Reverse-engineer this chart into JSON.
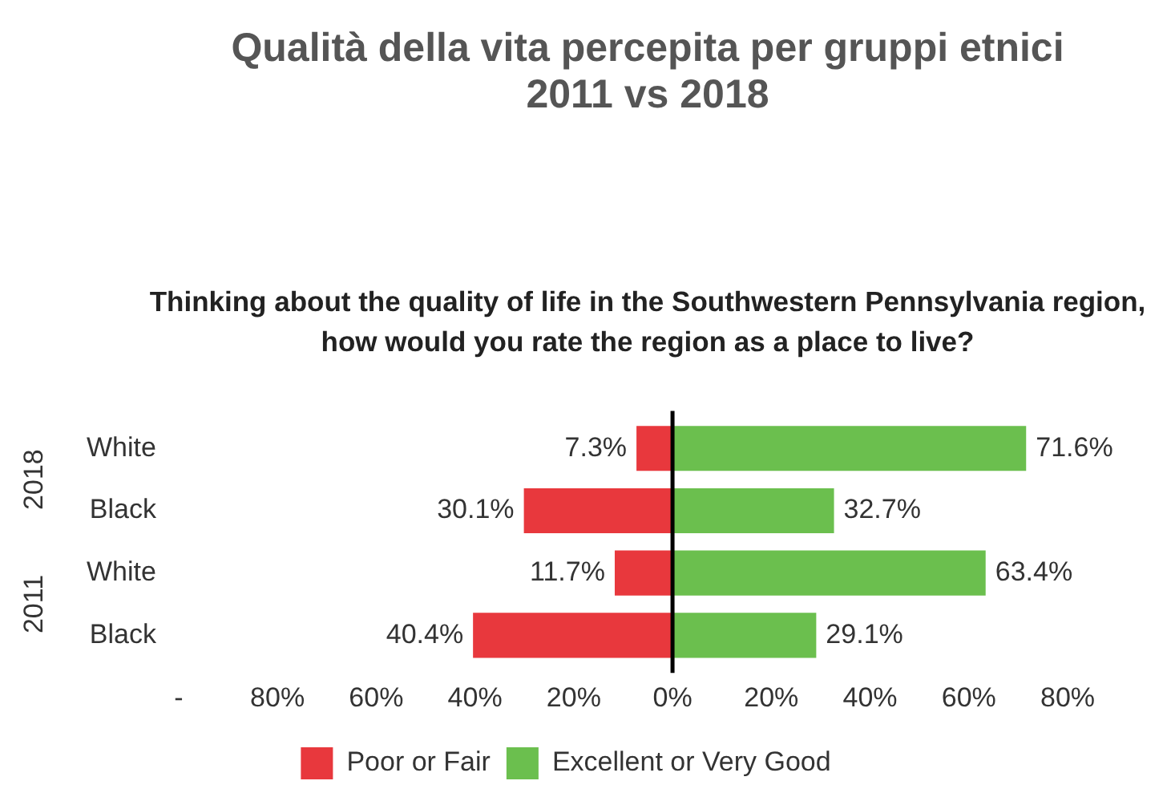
{
  "chart_data": {
    "type": "bar",
    "orientation": "horizontal",
    "title": "Qualità della vita percepita per gruppi etnici\n2011 vs 2018",
    "subtitle": "Thinking about the quality of life in the Southwestern Pennsylvania region,\nhow would you rate the region as a place to live?",
    "categories": [
      "White",
      "Black",
      "White",
      "Black"
    ],
    "series": [
      {
        "name": "Poor or Fair",
        "color": "#e8383d",
        "base": [
          -7.3,
          -30.1,
          -11.7,
          -40.4
        ],
        "values": [
          7.3,
          30.1,
          11.7,
          40.4
        ],
        "value_labels": [
          "7.3%",
          "30.1%",
          "11.7%",
          "40.4%"
        ]
      },
      {
        "name": "Excellent or Very Good",
        "color": "#6bbf4e",
        "values": [
          71.6,
          32.7,
          63.4,
          29.1
        ],
        "value_labels": [
          "71.6%",
          "32.7%",
          "63.4%",
          "29.1%"
        ]
      }
    ],
    "annotations": [
      "2018",
      "2011"
    ],
    "xlim": [
      -100,
      80
    ],
    "xticks": [
      {
        "value": -100,
        "label": "-"
      },
      {
        "value": -80,
        "label": "80%"
      },
      {
        "value": -60,
        "label": "60%"
      },
      {
        "value": -40,
        "label": "40%"
      },
      {
        "value": -20,
        "label": "20%"
      },
      {
        "value": 0,
        "label": "0%"
      },
      {
        "value": 20,
        "label": "20%"
      },
      {
        "value": 40,
        "label": "40%"
      },
      {
        "value": 60,
        "label": "60%"
      },
      {
        "value": 80,
        "label": "80%"
      }
    ],
    "ref_lines": [
      {
        "axis": "x",
        "value": 0,
        "color": "#000000"
      }
    ],
    "grid": false,
    "legend": "bottom"
  }
}
